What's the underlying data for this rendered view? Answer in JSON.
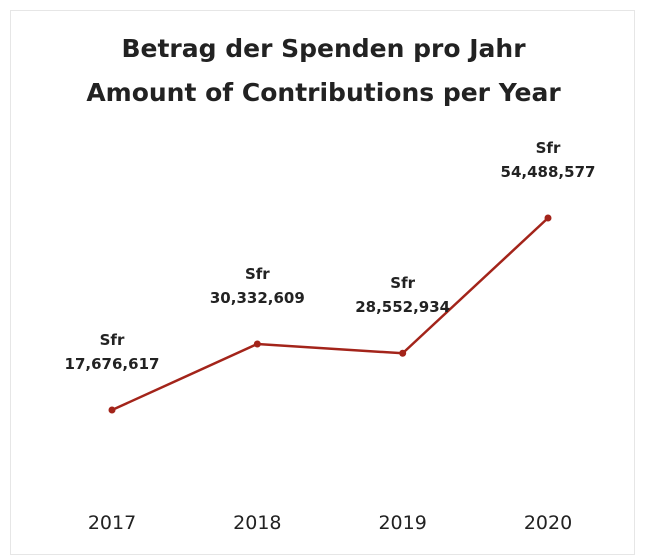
{
  "chart_data": {
    "type": "line",
    "title": "Betrag der Spenden pro Jahr",
    "subtitle": "Amount of Contributions per Year",
    "categories": [
      "2017",
      "2018",
      "2019",
      "2020"
    ],
    "series": [
      {
        "name": null,
        "color": "#a3241a",
        "values": [
          17676617,
          30332609,
          28552934,
          54488577
        ],
        "value_labels": [
          "Sfr\n17,676,617",
          "Sfr\n30,332,609",
          "Sfr\n28,552,934",
          "Sfr\n54,488,577"
        ]
      }
    ]
  }
}
